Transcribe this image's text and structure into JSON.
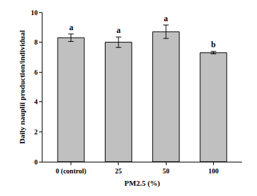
{
  "chart_data": {
    "type": "bar",
    "categories": [
      "0 (control)",
      "25",
      "50",
      "100"
    ],
    "values": [
      8.3,
      8.0,
      8.7,
      7.3
    ],
    "errors": [
      0.25,
      0.35,
      0.45,
      0.08
    ],
    "annotations": [
      "a",
      "a",
      "a",
      "b"
    ],
    "color": "#c0c0c0",
    "x_label": "PM2.5 (%)",
    "y_label": "Daily nauplii production/individual",
    "ylim": [
      0,
      10
    ],
    "yticks": [
      0,
      2,
      4,
      6,
      8,
      10
    ],
    "grid": false
  }
}
